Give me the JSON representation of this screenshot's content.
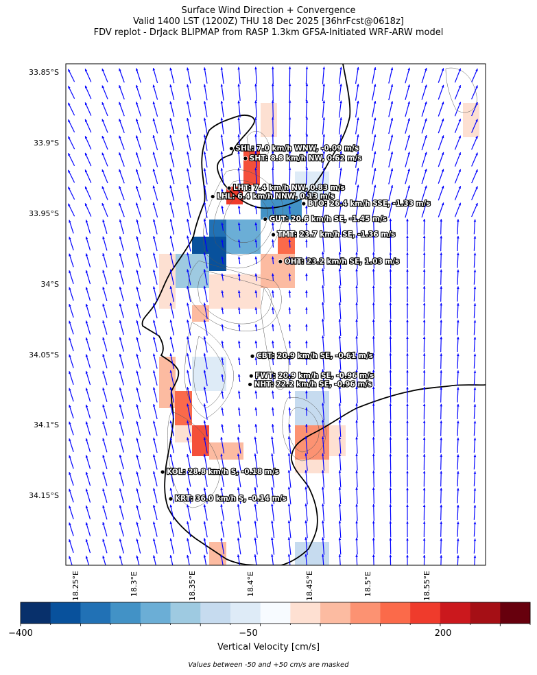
{
  "titles": [
    "Surface Wind Direction + Convergence",
    "Valid 1400 LST (1200Z) THU 18 Dec 2025 [36hrFcst@0618z]",
    "FDV replot - DrJack BLIPMAP from RASP 1.3km GFSA-Initiated WRF-ARW model"
  ],
  "map": {
    "lat_range": [
      -34.2,
      -33.845
    ],
    "lon_range": [
      18.2,
      18.56
    ],
    "lat_ticks": [
      "33.85°S",
      "33.9°S",
      "33.95°S",
      "34°S",
      "34.05°S",
      "34.1°S",
      "34.15°S"
    ],
    "lon_ticks": [
      "18.25°E",
      "18.3°E",
      "18.35°E",
      "18.4°E",
      "18.45°E",
      "18.5°E",
      "18.55°E"
    ],
    "wind_arrow_color": "#0000ff",
    "coastline_color": "#000000",
    "contour_color": "#555555"
  },
  "stations": [
    {
      "label": "SHL: 7.0 km/h WNW, -0.09 m/s",
      "lat": -33.905,
      "lon": 18.342
    },
    {
      "label": "SHT: 8.8 km/h NW, 0.62 m/s",
      "lat": -33.912,
      "lon": 18.354
    },
    {
      "label": "LHT: 7.4 km/h NW, 0.83 m/s",
      "lat": -33.933,
      "lon": 18.34
    },
    {
      "label": "LHL: 6.4 km/h NNW, 0.13 m/s",
      "lat": -33.939,
      "lon": 18.326
    },
    {
      "label": "BTO: 26.4 km/h SSE, -1.33 m/s",
      "lat": -33.944,
      "lon": 18.404
    },
    {
      "label": "GUT: 20.6 km/h SE, -1.45 m/s",
      "lat": -33.955,
      "lon": 18.371
    },
    {
      "label": "TMT: 23.7 km/h SE, -1.36 m/s",
      "lat": -33.966,
      "lon": 18.378
    },
    {
      "label": "OHT: 23.2 km/h SE, 1.03 m/s",
      "lat": -33.985,
      "lon": 18.384
    },
    {
      "label": "CBT: 20.9 km/h SE, -0.61 m/s",
      "lat": -34.052,
      "lon": 18.36
    },
    {
      "label": "FWT: 20.9 km/h SE, -0.96 m/s",
      "lat": -34.066,
      "lon": 18.359
    },
    {
      "label": "NHT: 22.2 km/h SE, -0.96 m/s",
      "lat": -34.072,
      "lon": 18.358
    },
    {
      "label": "KOL: 28.8 km/h S, -0.18 m/s",
      "lat": -34.134,
      "lon": 18.283
    },
    {
      "label": "KRT: 36.0 km/h S, -0.14 m/s",
      "lat": -34.153,
      "lon": 18.29
    }
  ],
  "colorbar": {
    "title": "Vertical Velocity [cm/s]",
    "tick_labels": [
      "−400",
      "−50",
      "200"
    ],
    "colors": [
      "#08306b",
      "#08519c",
      "#2171b5",
      "#4292c6",
      "#6baed6",
      "#9ecae1",
      "#c6dbef",
      "#deebf7",
      "#f7fbff",
      "#fee0d2",
      "#fcbba1",
      "#fc9272",
      "#fb6a4a",
      "#ef3b2c",
      "#cb181d",
      "#a50f15",
      "#67000d"
    ]
  },
  "footnote": "Values between -50 and +50 cm/s are masked"
}
